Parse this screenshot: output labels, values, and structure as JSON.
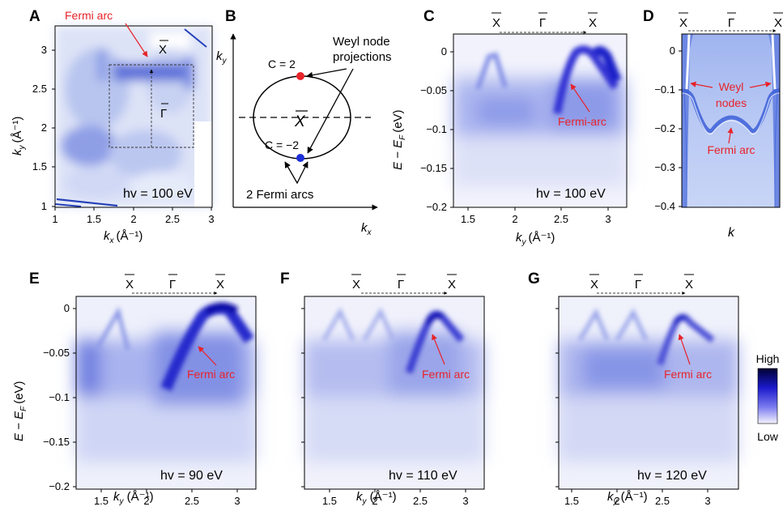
{
  "panels": {
    "A": {
      "letter": "A",
      "annotation": "Fermi arc",
      "point_label": "X",
      "gamma_label": "Γ",
      "photon_energy": "hv = 100 eV",
      "xlabel": "k",
      "xlabel_sub": "x",
      "ylabel": "k",
      "ylabel_sub": "y",
      "unit": "(Å⁻¹)",
      "xticks": [
        "1",
        "1.5",
        "2",
        "2.5",
        "3"
      ],
      "yticks": [
        "3",
        "2.5",
        "2",
        "1.5",
        "1"
      ]
    },
    "B": {
      "letter": "B",
      "ky_label": "k",
      "ky_sub": "y",
      "kx_label": "k",
      "kx_sub": "x",
      "chern_pos": "C = 2",
      "chern_neg": "C = −2",
      "center_label": "X",
      "weyl_label_line1": "Weyl node",
      "weyl_label_line2": "projections",
      "arcs_label": "2 Fermi arcs"
    },
    "C": {
      "letter": "C",
      "top_labels": [
        "X",
        "Γ",
        "X"
      ],
      "annotation": "Fermi-arc",
      "photon_energy": "hv = 100 eV",
      "xlabel": "k",
      "xlabel_sub": "y",
      "unit": "(Å⁻¹)",
      "ylabel": "E − E",
      "ylabel_sub": "F",
      "ylabel_unit": "(eV)",
      "xticks": [
        "1.5",
        "2",
        "2.5",
        "3"
      ],
      "yticks": [
        "0",
        "−0.05",
        "−0.1",
        "−0.15",
        "−0.2"
      ]
    },
    "D": {
      "letter": "D",
      "top_labels": [
        "X",
        "Γ",
        "X"
      ],
      "weyl_line1": "Weyl",
      "weyl_line2": "nodes",
      "fermi_arc": "Fermi arc",
      "xlabel": "k",
      "yticks": [
        "0",
        "−0.1",
        "−0.2",
        "−0.3",
        "−0.4"
      ]
    },
    "E": {
      "letter": "E",
      "top_labels": [
        "X",
        "Γ",
        "X"
      ],
      "annotation": "Fermi arc",
      "photon_energy": "hv = 90 eV",
      "xlabel": "k",
      "xlabel_sub": "y",
      "unit": "(Å⁻¹)",
      "ylabel": "E − E",
      "ylabel_sub": "F",
      "ylabel_unit": "(eV)",
      "xticks": [
        "1.5",
        "2",
        "2.5",
        "3"
      ],
      "yticks": [
        "0",
        "−0.05",
        "−0.1",
        "−0.15",
        "−0.2"
      ]
    },
    "F": {
      "letter": "F",
      "top_labels": [
        "X",
        "Γ",
        "X"
      ],
      "annotation": "Fermi arc",
      "photon_energy": "hv = 110 eV",
      "xlabel": "k",
      "xlabel_sub": "y",
      "unit": "(Å⁻¹)",
      "xticks": [
        "1.5",
        "2",
        "2.5",
        "3"
      ]
    },
    "G": {
      "letter": "G",
      "top_labels": [
        "X",
        "Γ",
        "X"
      ],
      "annotation": "Fermi arc",
      "photon_energy": "hv = 120 eV",
      "xlabel": "k",
      "xlabel_sub": "y",
      "unit": "(Å⁻¹)",
      "xticks": [
        "1.5",
        "2",
        "2.5",
        "3"
      ]
    }
  },
  "colorbar": {
    "high": "High",
    "low": "Low"
  },
  "colors": {
    "accent_red": "#e8232a",
    "intensity": "#2b2bd6",
    "node_blue": "#1c2fd8"
  }
}
